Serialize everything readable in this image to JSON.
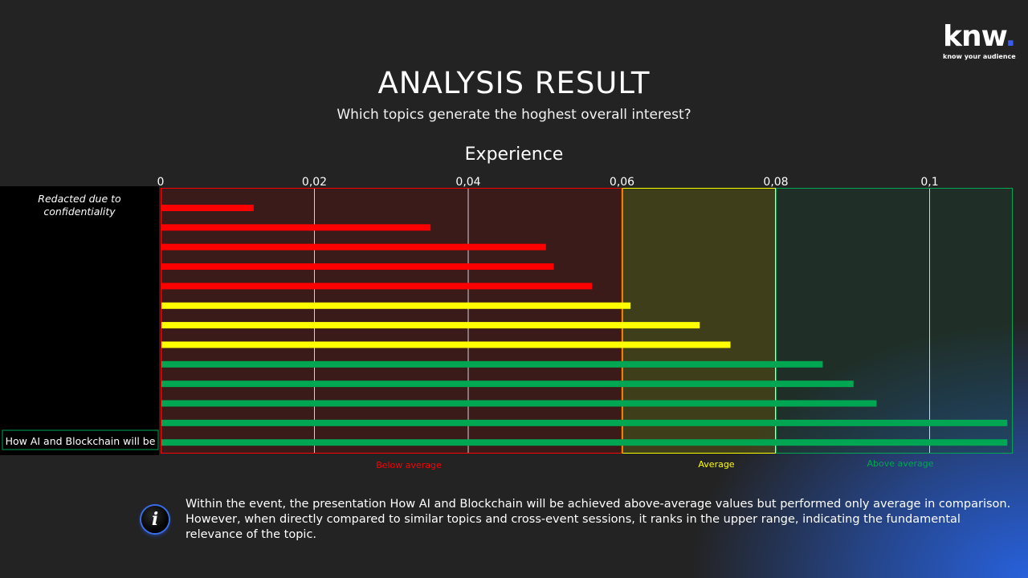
{
  "logo": {
    "word": "knw",
    "dot": ".",
    "tagline": "know your audience"
  },
  "header": {
    "title": "ANALYSIS RESULT",
    "subtitle": "Which topics generate the hoghest overall interest?"
  },
  "chart_data": {
    "type": "bar",
    "orientation": "horizontal",
    "title": "Experience",
    "xlim": [
      0,
      0.11
    ],
    "x_ticks": [
      {
        "value": 0,
        "label": "0"
      },
      {
        "value": 0.02,
        "label": "0,02"
      },
      {
        "value": 0.04,
        "label": "0,04"
      },
      {
        "value": 0.06,
        "label": "0,06"
      },
      {
        "value": 0.08,
        "label": "0,08"
      },
      {
        "value": 0.1,
        "label": "0,1"
      }
    ],
    "grid": true,
    "redacted_label": "Redacted due to confidentiality",
    "highlighted_category": "How AI and Blockchain will be",
    "bars": [
      {
        "value": 0.012,
        "band": "below"
      },
      {
        "value": 0.035,
        "band": "below"
      },
      {
        "value": 0.05,
        "band": "below"
      },
      {
        "value": 0.051,
        "band": "below"
      },
      {
        "value": 0.056,
        "band": "below"
      },
      {
        "value": 0.061,
        "band": "average"
      },
      {
        "value": 0.07,
        "band": "average"
      },
      {
        "value": 0.074,
        "band": "average"
      },
      {
        "value": 0.086,
        "band": "above"
      },
      {
        "value": 0.09,
        "band": "above"
      },
      {
        "value": 0.093,
        "band": "above"
      },
      {
        "value": 0.11,
        "band": "above"
      },
      {
        "value": 0.11,
        "band": "above",
        "highlighted": true
      }
    ],
    "bands": [
      {
        "key": "below",
        "label": "Below average",
        "range": [
          0,
          0.06
        ],
        "color": "#ff0000"
      },
      {
        "key": "average",
        "label": "Average",
        "range": [
          0.06,
          0.08
        ],
        "color": "#ffff00"
      },
      {
        "key": "above",
        "label": "Above average",
        "range": [
          0.08,
          0.11
        ],
        "color": "#00a651"
      }
    ]
  },
  "info": {
    "icon": "info-icon",
    "text": "Within the event, the presentation How AI and Blockchain will be achieved above-average values but performed only average in comparison. However, when directly compared to similar topics and cross-event sessions, it ranks in the upper range, indicating the fundamental relevance of the topic."
  }
}
